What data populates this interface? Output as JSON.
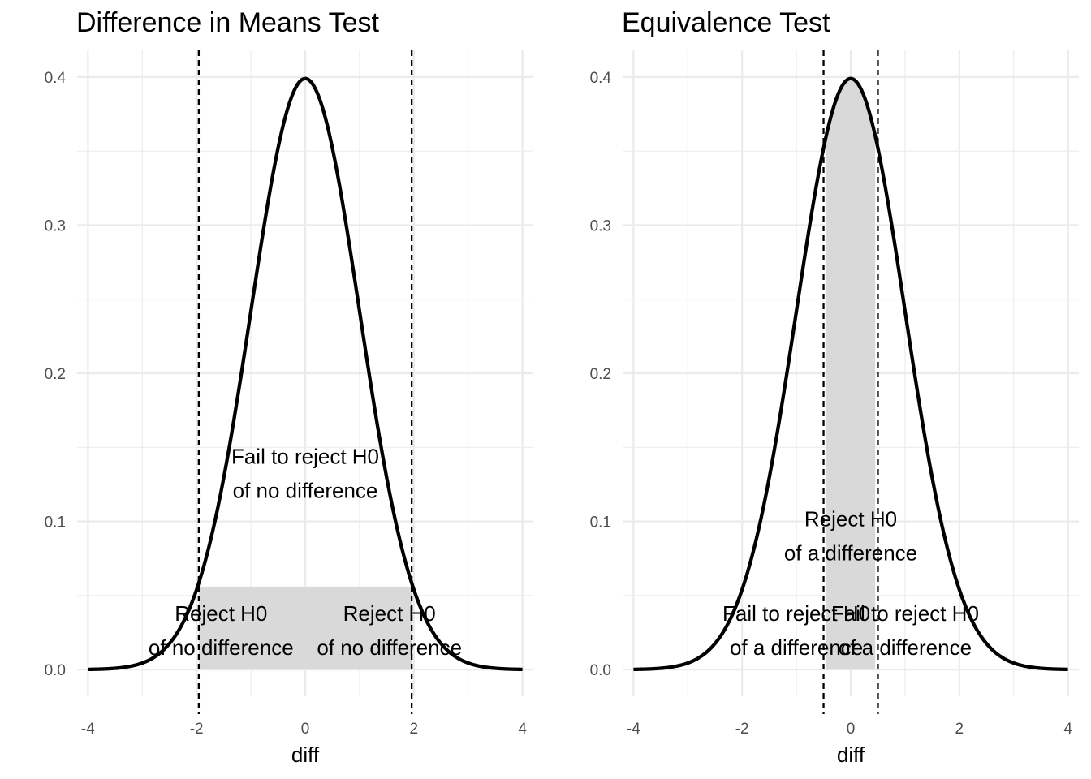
{
  "chart_data": [
    {
      "type": "area",
      "title": "Difference in Means Test",
      "xlabel": "diff",
      "ylabel": "",
      "xlim": [
        -4.2,
        4.2
      ],
      "ylim": [
        -0.018,
        0.418
      ],
      "xticks": [
        "-4",
        "-2",
        "0",
        "2",
        "4"
      ],
      "yticks": [
        "0.0",
        "0.1",
        "0.2",
        "0.3",
        "0.4"
      ],
      "xtick_values": [
        -4,
        -2,
        0,
        2,
        4
      ],
      "ytick_values": [
        0,
        0.1,
        0.2,
        0.3,
        0.4
      ],
      "grid": true,
      "curve": {
        "distribution": "standard normal density",
        "x_range": [
          -4,
          4
        ],
        "peak_y": 0.399
      },
      "shaded_region": {
        "x_from": -1.96,
        "x_to": 1.96,
        "y_from": 0,
        "y_to": 0.056
      },
      "vlines": [
        -1.96,
        1.96
      ],
      "annotations": [
        {
          "x": -1.55,
          "y": 0.0263,
          "text": [
            "Reject H0",
            "of no difference"
          ]
        },
        {
          "x": 1.55,
          "y": 0.0263,
          "text": [
            "Reject H0",
            "of no difference"
          ]
        },
        {
          "x": 0,
          "y": 0.1323,
          "text": [
            "Fail to reject H0",
            "of no difference"
          ]
        }
      ]
    },
    {
      "type": "area",
      "title": "Equivalence Test",
      "xlabel": "diff",
      "ylabel": "",
      "xlim": [
        -4.2,
        4.2
      ],
      "ylim": [
        -0.018,
        0.418
      ],
      "xticks": [
        "-4",
        "-2",
        "0",
        "2",
        "4"
      ],
      "yticks": [
        "0.0",
        "0.1",
        "0.2",
        "0.3",
        "0.4"
      ],
      "xtick_values": [
        -4,
        -2,
        0,
        2,
        4
      ],
      "ytick_values": [
        0,
        0.1,
        0.2,
        0.3,
        0.4
      ],
      "grid": true,
      "curve": {
        "distribution": "standard normal density",
        "x_range": [
          -4,
          4
        ],
        "peak_y": 0.399
      },
      "shaded_region": {
        "x_from": -0.45,
        "x_to": 0.45,
        "y_from": 0,
        "y_to": "curve"
      },
      "vlines": [
        -0.5,
        0.5
      ],
      "annotations": [
        {
          "x": -1.0,
          "y": 0.0263,
          "text": [
            "Fail to reject H0",
            "of a difference"
          ]
        },
        {
          "x": 1.0,
          "y": 0.0263,
          "text": [
            "Fail to reject H0",
            "of a difference"
          ]
        },
        {
          "x": 0,
          "y": 0.0903,
          "text": [
            "Reject H0",
            "of a difference"
          ]
        }
      ]
    }
  ]
}
